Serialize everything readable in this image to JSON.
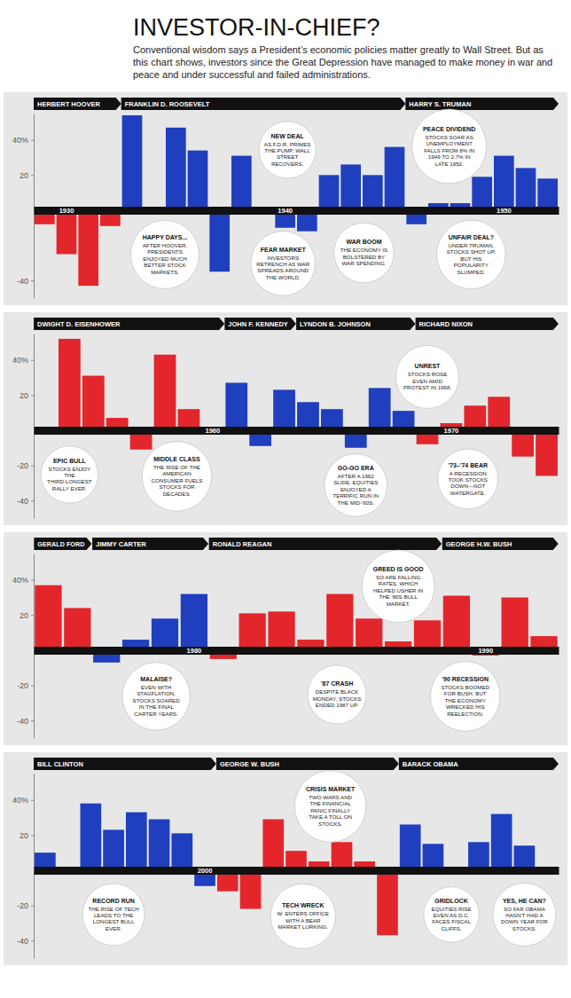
{
  "title": "INVESTOR-IN-CHIEF?",
  "subtitle": "Conventional wisdom says a President’s economic policies matter greatly to Wall Street. But as this chart shows, investors since the Great Depression have managed to make money in war and peace and under successful and failed administrations.",
  "chart_data": [
    {
      "type": "bar",
      "categories": [
        null,
        "1930",
        null,
        null,
        null,
        null,
        null,
        null,
        null,
        null,
        null,
        "1940",
        null,
        null,
        null,
        null,
        null,
        null,
        null,
        null,
        null,
        "1950",
        null,
        null
      ],
      "series": [
        {
          "name": "HERBERT HOOVER",
          "color": "#e3262b",
          "values": [
            -8,
            -25,
            -43,
            -9,
            null,
            null,
            null,
            null,
            null,
            null,
            null,
            null,
            null,
            null,
            null,
            null,
            null,
            null,
            null,
            null,
            null,
            null,
            null,
            null
          ]
        },
        {
          "name": "FRANKLIN D. ROOSEVELT",
          "color": "#1f3fbf",
          "values": [
            null,
            null,
            null,
            null,
            54,
            -1,
            47,
            34,
            -35,
            31,
            -0.4,
            -10,
            -12,
            20,
            26,
            20,
            36,
            null,
            null,
            null,
            null,
            null,
            null,
            null
          ]
        },
        {
          "name": "HARRY S. TRUMAN",
          "color": "#1f3fbf",
          "values": [
            null,
            null,
            null,
            null,
            null,
            null,
            null,
            null,
            null,
            null,
            null,
            null,
            null,
            null,
            null,
            null,
            null,
            -8,
            4,
            4,
            19,
            31,
            24,
            18
          ]
        }
      ],
      "ylim": [
        -50,
        55
      ],
      "yticks": [
        {
          "value": 40,
          "label": "40%"
        },
        20,
        -40
      ],
      "annotations": [
        {
          "title": "NEW DEAL",
          "text": "AS F.D.R. PRIMES THE PUMP, WALL STREET RECOVERS."
        },
        {
          "title": "PEACE DIVIDEND",
          "text": "STOCKS SOAR AS UNEMPLOYMENT FALLS FROM 8% IN 1949 TO 2.7% IN LATE 1952."
        },
        {
          "title": "HAPPY DAYS...",
          "text": "AFTER HOOVER, PRESIDENTS ENJOYED MUCH BETTER STOCK MARKETS."
        },
        {
          "title": "FEAR MARKET",
          "text": "INVESTORS RETRENCH AS WAR SPREADS AROUND THE WORLD."
        },
        {
          "title": "WAR BOOM",
          "text": "THE ECONOMY IS BOLSTERED BY WAR SPENDING."
        },
        {
          "title": "UNFAIR DEAL?",
          "text": "UNDER TRUMAN, STOCKS SHOT UP, BUT HIS POPULARITY SLUMPED."
        }
      ]
    },
    {
      "type": "bar",
      "categories": [
        null,
        null,
        null,
        null,
        null,
        null,
        null,
        "1960",
        null,
        null,
        null,
        null,
        null,
        null,
        null,
        null,
        null,
        "1970",
        null,
        null,
        null,
        null
      ],
      "series": [
        {
          "name": "DWIGHT D. EISENHOWER",
          "color": "#e3262b",
          "values": [
            -1,
            52,
            31,
            7,
            -11,
            43,
            12,
            0.5,
            null,
            null,
            null,
            null,
            null,
            null,
            null,
            null,
            null,
            null,
            null,
            null,
            null,
            null
          ]
        },
        {
          "name": "JOHN F. KENNEDY",
          "color": "#1f3fbf",
          "values": [
            null,
            null,
            null,
            null,
            null,
            null,
            null,
            null,
            27,
            -9,
            23,
            null,
            null,
            null,
            null,
            null,
            null,
            null,
            null,
            null,
            null,
            null
          ]
        },
        {
          "name": "LYNDON B. JOHNSON",
          "color": "#1f3fbf",
          "values": [
            null,
            null,
            null,
            null,
            null,
            null,
            null,
            null,
            null,
            null,
            null,
            16,
            12,
            -10,
            24,
            11,
            null,
            null,
            null,
            null,
            null,
            null
          ]
        },
        {
          "name": "RICHARD NIXON",
          "color": "#e3262b",
          "values": [
            null,
            null,
            null,
            null,
            null,
            null,
            null,
            null,
            null,
            null,
            null,
            null,
            null,
            null,
            null,
            null,
            -8,
            4,
            14,
            19,
            -15,
            -26
          ]
        }
      ],
      "ylim": [
        -50,
        55
      ],
      "yticks": [
        {
          "value": 40,
          "label": "40%"
        },
        20,
        -20,
        -40
      ],
      "annotations": [
        {
          "title": "EPIC BULL",
          "text": "STOCKS ENJOY THE THIRD-LONGEST RALLY EVER."
        },
        {
          "title": "MIDDLE CLASS",
          "text": "THE RISE OF THE AMERICAN CONSUMER FUELS STOCKS FOR DECADES."
        },
        {
          "title": "UNREST",
          "text": "STOCKS ROSE EVEN AMID PROTEST IN 1968."
        },
        {
          "title": "GO-GO ERA",
          "text": "AFTER A 1962 SLIDE, EQUITIES ENJOYED A TERRIFIC RUN IN THE MID-'60S."
        },
        {
          "title": "'73–'74 BEAR",
          "text": "A RECESSION TOOK STOCKS DOWN—NOT WATERGATE."
        }
      ]
    },
    {
      "type": "bar",
      "categories": [
        null,
        null,
        null,
        null,
        null,
        "1980",
        null,
        null,
        null,
        null,
        null,
        null,
        null,
        null,
        null,
        "1990",
        null,
        null
      ],
      "series": [
        {
          "name": "GERALD FORD",
          "color": "#e3262b",
          "values": [
            37,
            24,
            null,
            null,
            null,
            null,
            null,
            null,
            null,
            null,
            null,
            null,
            null,
            null,
            null,
            null,
            null,
            null
          ]
        },
        {
          "name": "JIMMY CARTER",
          "color": "#1f3fbf",
          "values": [
            null,
            null,
            -7,
            6,
            18,
            32,
            null,
            null,
            null,
            null,
            null,
            null,
            null,
            null,
            null,
            null,
            null,
            null
          ]
        },
        {
          "name": "RONALD REAGAN",
          "color": "#e3262b",
          "values": [
            null,
            null,
            null,
            null,
            null,
            null,
            -5,
            21,
            22,
            6,
            32,
            18,
            5,
            17,
            null,
            null,
            null,
            null
          ]
        },
        {
          "name": "GEORGE H.W. BUSH",
          "color": "#e3262b",
          "values": [
            null,
            null,
            null,
            null,
            null,
            null,
            null,
            null,
            null,
            null,
            null,
            null,
            null,
            null,
            31,
            -3,
            30,
            8
          ]
        }
      ],
      "ylim": [
        -50,
        55
      ],
      "yticks": [
        {
          "value": 40,
          "label": "40%"
        },
        20,
        -20,
        -40
      ],
      "annotations": [
        {
          "title": "GREED IS GOOD",
          "text": "SO ARE FALLING RATES, WHICH HELPED USHER IN THE '80S BULL MARKET."
        },
        {
          "title": "MALAISE?",
          "text": "EVEN WITH STAGFLATION, STOCKS SOARED IN THE FINAL CARTER YEARS."
        },
        {
          "title": "'87 CRASH",
          "text": "DESPITE BLACK MONDAY, STOCKS ENDED 1987 UP."
        },
        {
          "title": "'90 RECESSION",
          "text": "STOCKS BOOMED FOR BUSH, BUT THE ECONOMY WRECKED HIS REELECTION."
        }
      ]
    },
    {
      "type": "bar",
      "categories": [
        null,
        null,
        null,
        null,
        null,
        null,
        null,
        "2000",
        null,
        null,
        null,
        null,
        null,
        null,
        null,
        null,
        null,
        null,
        null,
        null,
        null,
        null,
        null
      ],
      "series": [
        {
          "name": "BILL CLINTON",
          "color": "#1f3fbf",
          "values": [
            10,
            1,
            38,
            23,
            33,
            29,
            21,
            -9,
            null,
            null,
            null,
            null,
            null,
            null,
            null,
            null,
            null,
            null,
            null,
            null,
            null,
            null,
            null
          ]
        },
        {
          "name": "GEORGE W. BUSH",
          "color": "#e3262b",
          "values": [
            null,
            null,
            null,
            null,
            null,
            null,
            null,
            null,
            -12,
            -22,
            29,
            11,
            5,
            16,
            5,
            -37,
            null,
            null,
            null,
            null,
            null,
            null,
            null
          ]
        },
        {
          "name": "BARACK OBAMA",
          "color": "#1f3fbf",
          "values": [
            null,
            null,
            null,
            null,
            null,
            null,
            null,
            null,
            null,
            null,
            null,
            null,
            null,
            null,
            null,
            null,
            26,
            15,
            2,
            16,
            32,
            14,
            1
          ]
        }
      ],
      "ylim": [
        -50,
        55
      ],
      "yticks": [
        {
          "value": 40,
          "label": "40%"
        },
        20,
        -20,
        -40
      ],
      "annotations": [
        {
          "title": "RECORD RUN",
          "text": "THE RISE OF TECH LEADS TO THE LONGEST BULL EVER."
        },
        {
          "title": "YES, HE CAN?",
          "text": "SO FAR OBAMA HASN'T HAD A DOWN YEAR FOR STOCKS."
        },
        {
          "title": "TECH WRECK",
          "text": "W. ENTERS OFFICE WITH A BEAR MARKET LURKING."
        },
        {
          "title": "CRISIS MARKET",
          "text": "TWO WARS AND THE FINANCIAL PANIC FINALLY TAKE A TOLL ON STOCKS."
        },
        {
          "title": "GRIDLOCK",
          "text": "EQUITIES RISE EVEN AS D.C. FACES FISCAL CLIFFS."
        }
      ]
    }
  ]
}
